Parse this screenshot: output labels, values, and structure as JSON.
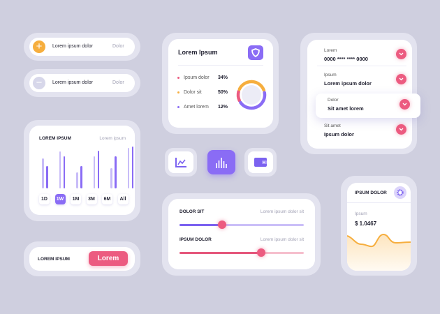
{
  "toggle_rows": [
    {
      "label": "Lorem ipsum dolor",
      "value": "Dolor",
      "icon": "plus-icon",
      "color": "#f6ae3e"
    },
    {
      "label": "Lorem ipsum dolor",
      "value": "Dolor",
      "icon": "minus-icon",
      "color": "#d7d7ea"
    }
  ],
  "bar_card": {
    "title": "LOREM IPSUM",
    "subtitle": "Lorem ipsum",
    "bars": [
      [
        43,
        32
      ],
      [
        53,
        46
      ],
      [
        23,
        32
      ],
      [
        46,
        54
      ],
      [
        29,
        46
      ],
      [
        58,
        60
      ]
    ],
    "ranges": [
      "1D",
      "1W",
      "1M",
      "3M",
      "6M",
      "All"
    ],
    "selected_range": "1W"
  },
  "action_card": {
    "label": "LOREM IPSUM",
    "button": "Lorem"
  },
  "donut_card": {
    "title": "Lorem Ipsum",
    "icon": "shield-icon",
    "items": [
      {
        "label": "Ipsum dolor",
        "value": "34%",
        "color": "#ec5b80"
      },
      {
        "label": "Dolor sit",
        "value": "50%",
        "color": "#f6ae3e"
      },
      {
        "label": "Amet lorem",
        "value": "12%",
        "color": "#8a6cf5"
      }
    ]
  },
  "icon_tiles": [
    "line-chart-icon",
    "bar-chart-icon",
    "wallet-icon"
  ],
  "list_card": {
    "items": [
      {
        "label": "Lorem",
        "value": "0000 **** **** 0000"
      },
      {
        "label": "Ipsum",
        "value": "Lorem ipsum dolor"
      },
      {
        "label": "Dolor",
        "value": "Sit amet lorem"
      },
      {
        "label": "Sit amet",
        "value": "Ipsum dolor"
      }
    ]
  },
  "slider_card": {
    "sliders": [
      {
        "label": "DOLOR SIT",
        "hint": "Lorem ipsum dolor sit",
        "value": 0.34,
        "color": "#7b62f0",
        "track": "#cbbff8"
      },
      {
        "label": "IPSUM DOLOR",
        "hint": "Lorem ipsum dolor sit",
        "value": 0.66,
        "color": "#e5577c",
        "track": "#f6bfcd"
      }
    ]
  },
  "price_card": {
    "title": "IPSUM DOLOR",
    "label": "Ipsum",
    "value": "$ 1.0467",
    "icon": "gear-icon"
  }
}
